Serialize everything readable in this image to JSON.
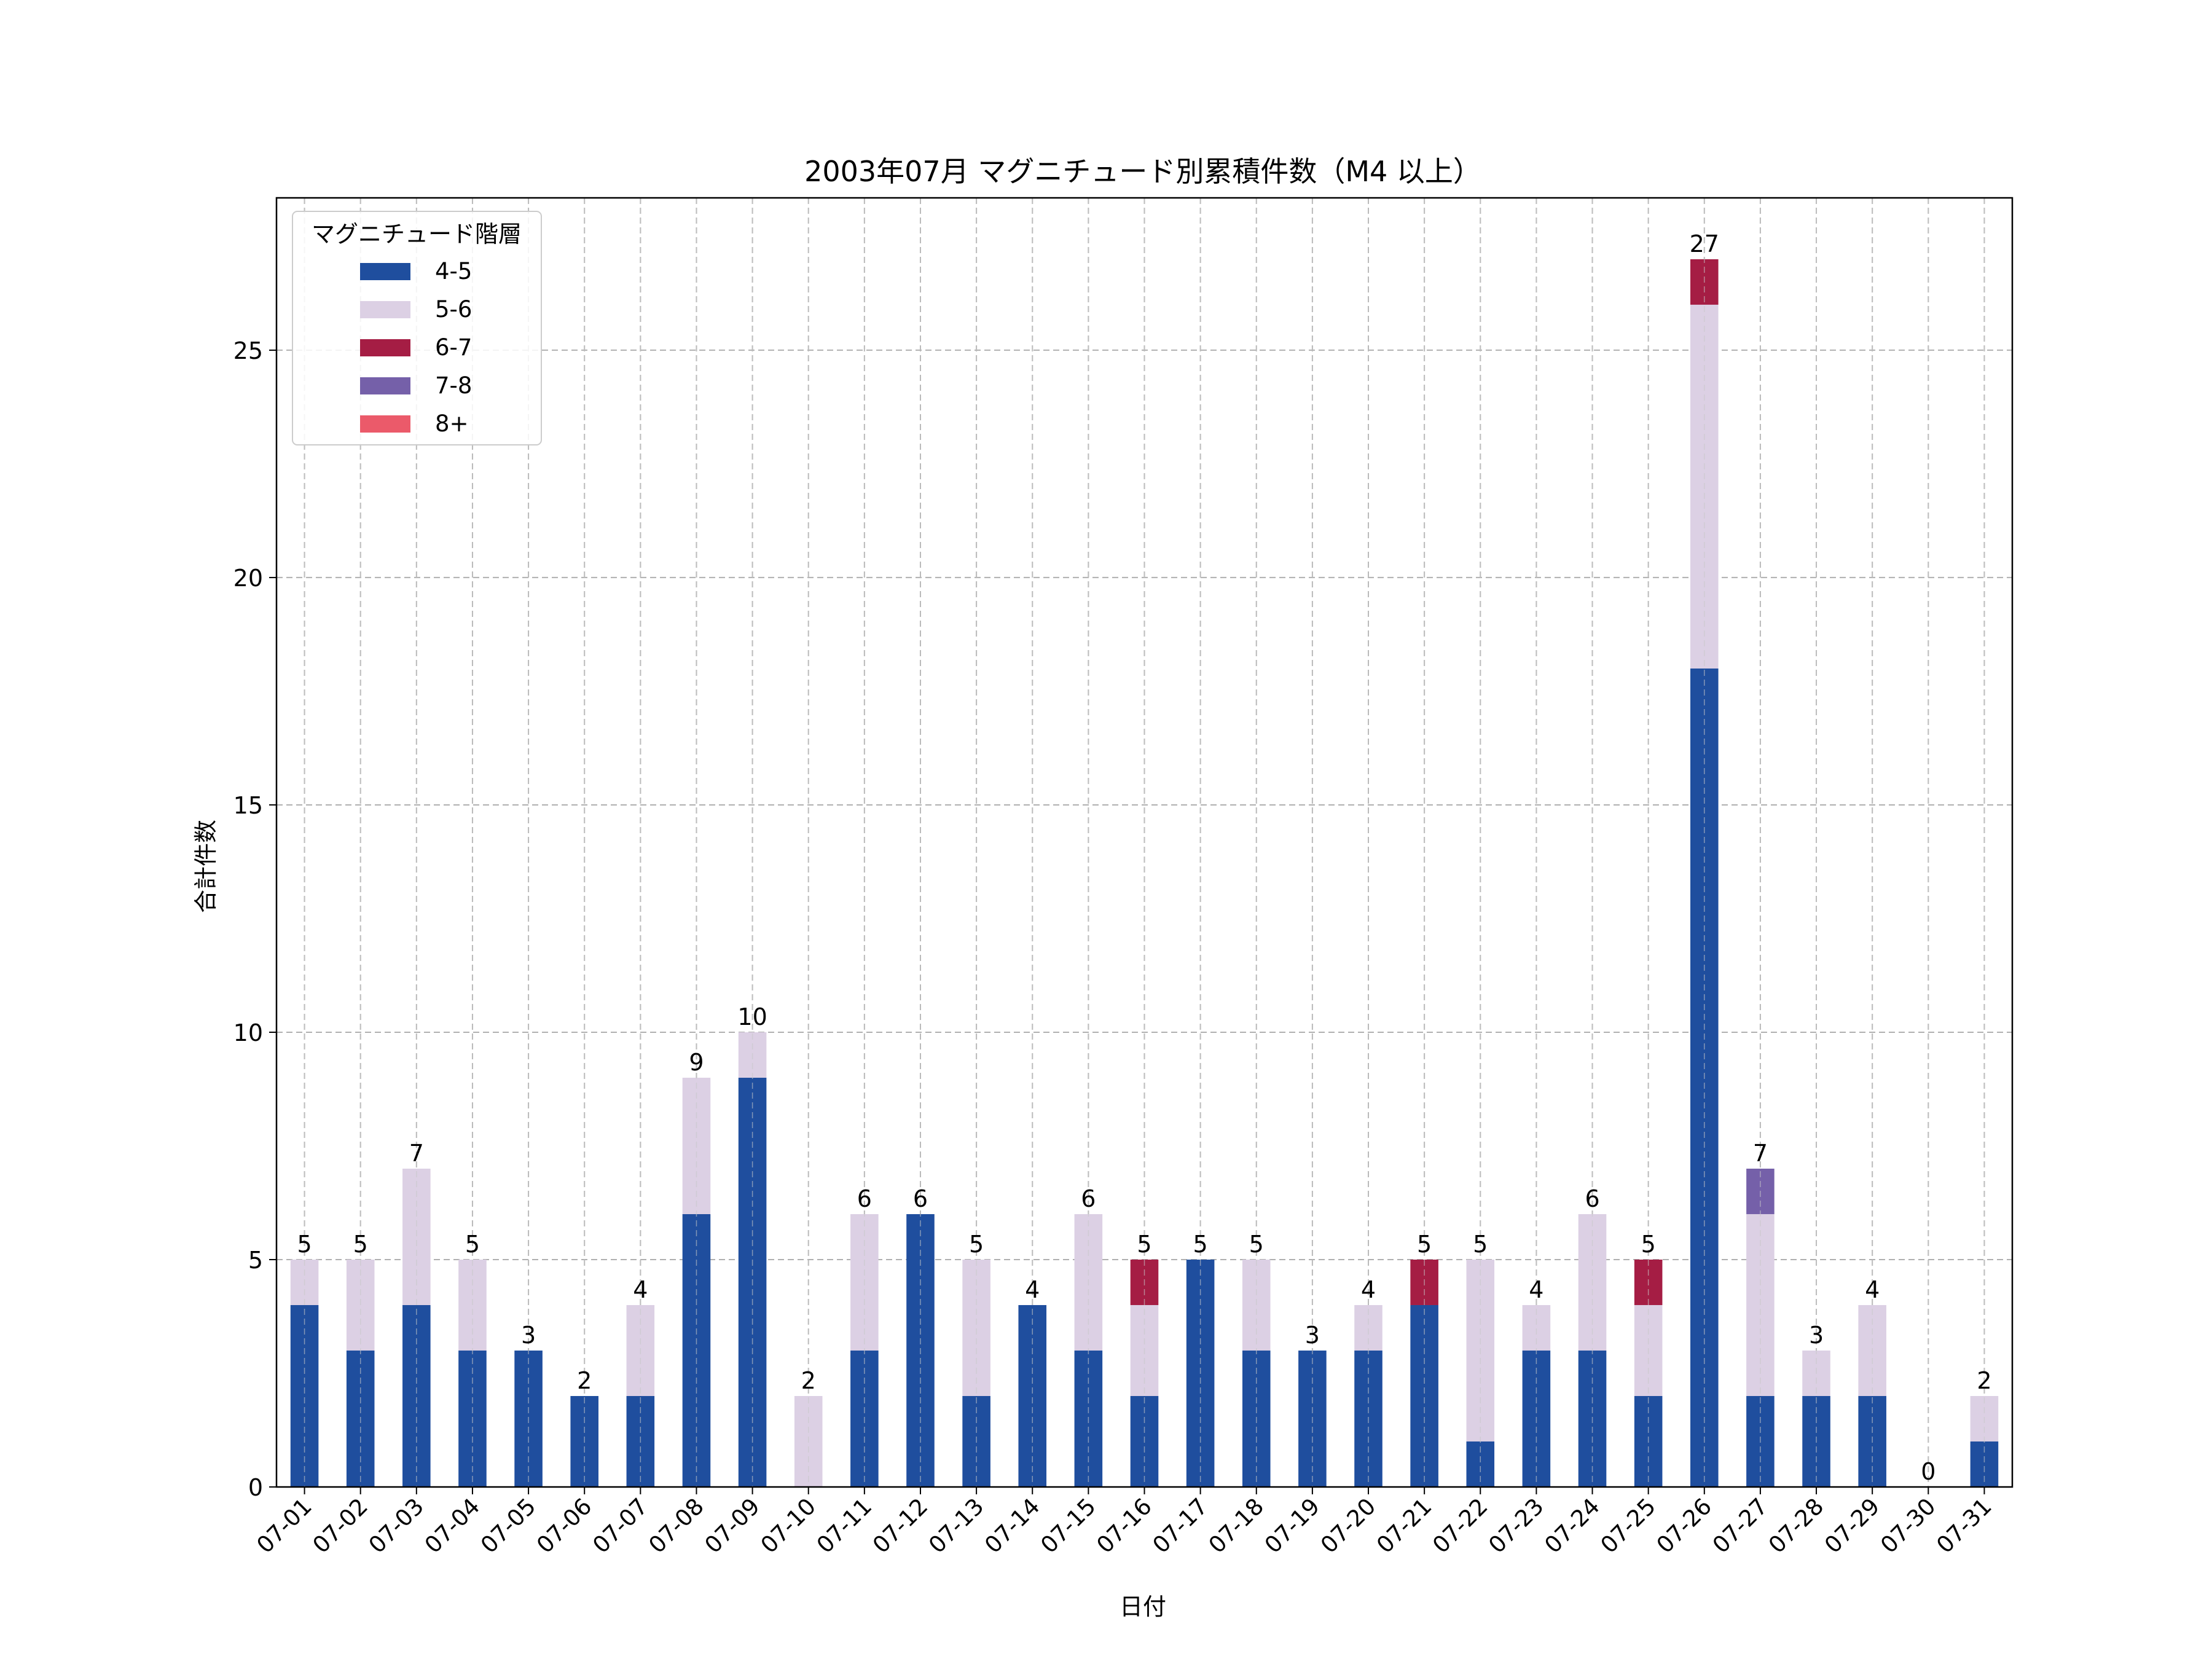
{
  "chart_data": {
    "type": "bar",
    "stacked": true,
    "title": "2003年07月 マグニチュード別累積件数（M4 以上）",
    "xlabel": "日付",
    "ylabel": "合計件数",
    "ylim": [
      0,
      28.35
    ],
    "yticks": [
      0,
      5,
      10,
      15,
      20,
      25
    ],
    "grid": true,
    "legend": {
      "title": "マグニチュード階層",
      "placement": "top-left"
    },
    "categories": [
      "07-01",
      "07-02",
      "07-03",
      "07-04",
      "07-05",
      "07-06",
      "07-07",
      "07-08",
      "07-09",
      "07-10",
      "07-11",
      "07-12",
      "07-13",
      "07-14",
      "07-15",
      "07-16",
      "07-17",
      "07-18",
      "07-19",
      "07-20",
      "07-21",
      "07-22",
      "07-23",
      "07-24",
      "07-25",
      "07-26",
      "07-27",
      "07-28",
      "07-29",
      "07-30",
      "07-31"
    ],
    "series": [
      {
        "name": "4-5",
        "color": "#1f4e9e",
        "values": [
          4,
          3,
          4,
          3,
          3,
          2,
          2,
          6,
          9,
          0,
          3,
          6,
          2,
          4,
          3,
          2,
          5,
          3,
          3,
          3,
          4,
          1,
          3,
          3,
          2,
          18,
          2,
          2,
          2,
          0,
          1
        ]
      },
      {
        "name": "5-6",
        "color": "#dcd0e4",
        "values": [
          1,
          2,
          3,
          2,
          0,
          0,
          2,
          3,
          1,
          2,
          3,
          0,
          3,
          0,
          3,
          2,
          0,
          2,
          0,
          1,
          0,
          4,
          1,
          3,
          2,
          8,
          4,
          1,
          2,
          0,
          1
        ]
      },
      {
        "name": "6-7",
        "color": "#a51d44",
        "values": [
          0,
          0,
          0,
          0,
          0,
          0,
          0,
          0,
          0,
          0,
          0,
          0,
          0,
          0,
          0,
          1,
          0,
          0,
          0,
          0,
          1,
          0,
          0,
          0,
          1,
          1,
          0,
          0,
          0,
          0,
          0
        ]
      },
      {
        "name": "7-8",
        "color": "#7560a9",
        "values": [
          0,
          0,
          0,
          0,
          0,
          0,
          0,
          0,
          0,
          0,
          0,
          0,
          0,
          0,
          0,
          0,
          0,
          0,
          0,
          0,
          0,
          0,
          0,
          0,
          0,
          0,
          1,
          0,
          0,
          0,
          0
        ]
      },
      {
        "name": "8+",
        "color": "#eb5a6a",
        "values": [
          0,
          0,
          0,
          0,
          0,
          0,
          0,
          0,
          0,
          0,
          0,
          0,
          0,
          0,
          0,
          0,
          0,
          0,
          0,
          0,
          0,
          0,
          0,
          0,
          0,
          0,
          0,
          0,
          0,
          0,
          0
        ]
      }
    ],
    "totals": [
      5,
      5,
      7,
      5,
      3,
      2,
      4,
      9,
      10,
      2,
      6,
      6,
      5,
      4,
      6,
      5,
      5,
      5,
      3,
      4,
      5,
      5,
      4,
      6,
      5,
      27,
      7,
      3,
      4,
      0,
      2
    ]
  }
}
